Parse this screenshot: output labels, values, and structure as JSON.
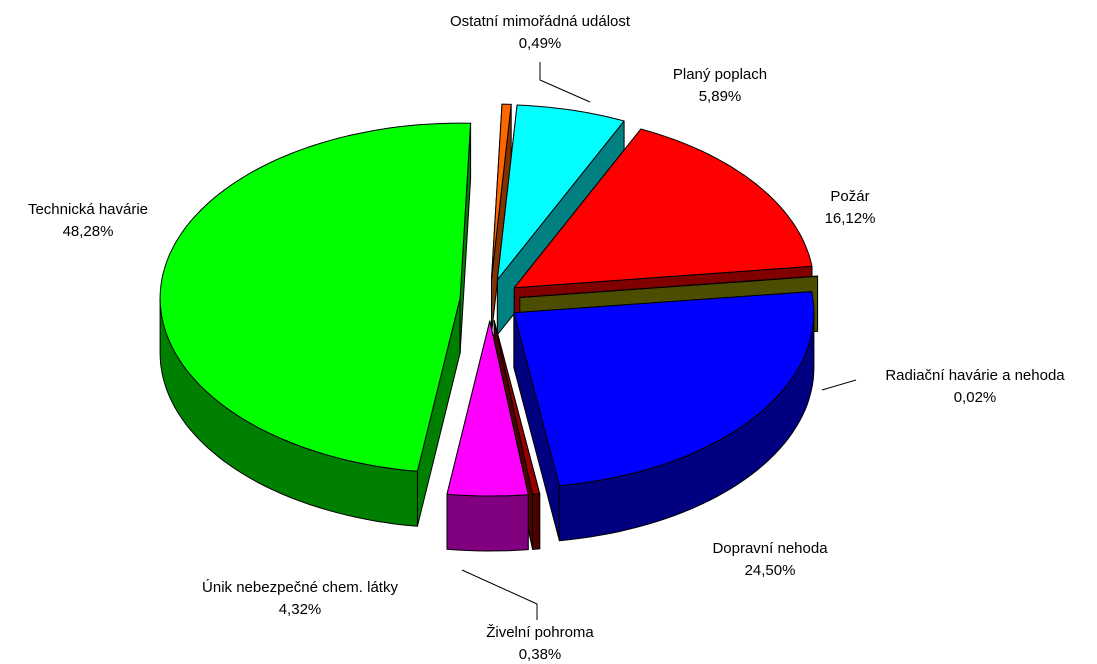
{
  "chart_data": {
    "type": "pie",
    "categories": [
      "Ostatní mimořádná událost",
      "Planý poplach",
      "Požár",
      "Radiační havárie a nehoda",
      "Dopravní nehoda",
      "Živelní pohroma",
      "Únik nebezpečné chem. látky",
      "Technická havárie"
    ],
    "values": [
      0.49,
      5.89,
      16.12,
      0.02,
      24.5,
      0.38,
      4.32,
      48.28
    ],
    "value_labels": [
      "0,49%",
      "5,89%",
      "16,12%",
      "0,02%",
      "24,50%",
      "0,38%",
      "4,32%",
      "48,28%"
    ],
    "colors": [
      "#ff6600",
      "#00ffff",
      "#ff0000",
      "#999900",
      "#0000ff",
      "#990000",
      "#ff00ff",
      "#00ff00"
    ]
  }
}
